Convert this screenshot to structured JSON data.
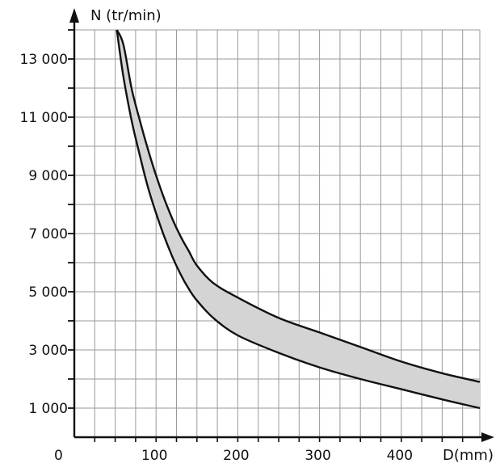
{
  "chart_data": {
    "type": "area",
    "ylabel": "N (tr/min)",
    "xlabel": "D(mm)",
    "origin_label": "0",
    "xlim": [
      0,
      500
    ],
    "ylim": [
      0,
      14000
    ],
    "x_ticks": [
      {
        "value": 100,
        "label": "100"
      },
      {
        "value": 200,
        "label": "200"
      },
      {
        "value": 300,
        "label": "300"
      },
      {
        "value": 400,
        "label": "400"
      }
    ],
    "y_ticks": [
      {
        "value": 1000,
        "label": "1 000"
      },
      {
        "value": 3000,
        "label": "3 000"
      },
      {
        "value": 5000,
        "label": "5 000"
      },
      {
        "value": 7000,
        "label": "7 000"
      },
      {
        "value": 9000,
        "label": "9 000"
      },
      {
        "value": 11000,
        "label": "11 000"
      },
      {
        "value": 13000,
        "label": "13 000"
      }
    ],
    "grid": true,
    "grid_step_x": 25,
    "grid_step_y": 1000,
    "fill_color": "#d4d4d4",
    "line_color": "#111111",
    "series": [
      {
        "x": [
          52,
          60,
          70,
          80,
          90,
          100,
          110,
          120,
          130,
          140,
          150,
          170,
          200,
          250,
          300,
          350,
          400,
          450,
          500
        ],
        "values": [
          14000,
          12400,
          10900,
          9700,
          8600,
          7700,
          6900,
          6200,
          5600,
          5100,
          4700,
          4100,
          3500,
          2900,
          2400,
          2000,
          1650,
          1300,
          1000
        ]
      },
      {
        "x": [
          52,
          60,
          70,
          80,
          90,
          100,
          110,
          120,
          130,
          140,
          150,
          170,
          200,
          250,
          300,
          350,
          400,
          450,
          500
        ],
        "values": [
          14000,
          13500,
          12000,
          10900,
          9900,
          9000,
          8200,
          7500,
          6900,
          6400,
          5900,
          5300,
          4800,
          4100,
          3600,
          3100,
          2600,
          2200,
          1900
        ]
      }
    ]
  }
}
